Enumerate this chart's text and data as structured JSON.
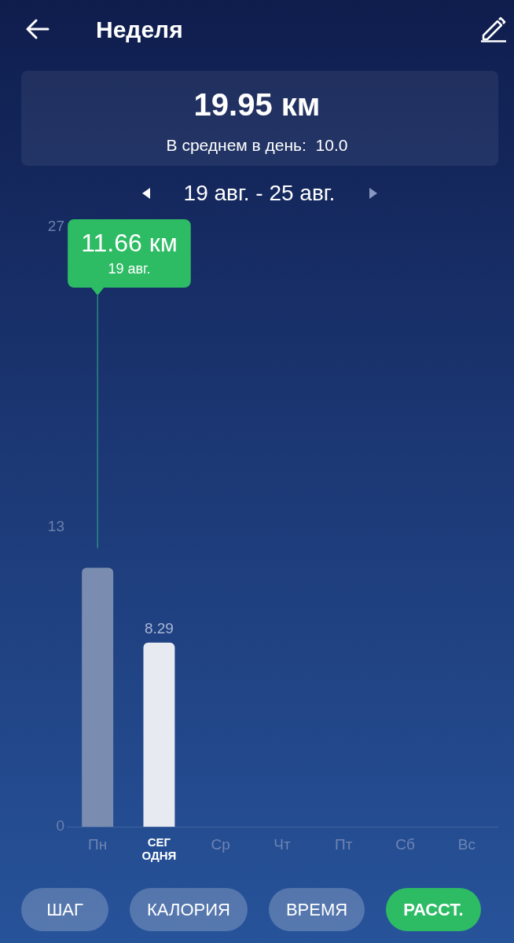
{
  "chart_data": {
    "type": "bar",
    "title": "Неделя",
    "subtitle": "19 авг. - 25 авг.",
    "categories": [
      "Пн",
      "СЕГ\nОДНЯ",
      "Ср",
      "Чт",
      "Пт",
      "Сб",
      "Вс"
    ],
    "values": [
      11.66,
      8.29,
      null,
      null,
      null,
      null,
      null
    ],
    "colors": [
      "#7a8db0",
      "#e7eaf0",
      "#7a8db0",
      "#7a8db0",
      "#7a8db0",
      "#7a8db0",
      "#7a8db0"
    ],
    "value_labels": [
      null,
      "8.29",
      null,
      null,
      null,
      null,
      null
    ],
    "ylim": [
      0,
      27
    ],
    "yticks": [
      0,
      {
        "value": 13.5,
        "label": "13"
      },
      27
    ],
    "grid": false,
    "legend": false,
    "ref_lines": [
      {
        "axis": "x",
        "value": "Пн",
        "color": "#2e9d8a"
      }
    ],
    "annotations": [
      "19.95 км",
      "В среднем в день:  10.0",
      "11.66 км",
      "19 авг.",
      "ШАГ",
      "КАЛОРИЯ",
      "ВРЕМЯ",
      "РАССТ."
    ]
  }
}
